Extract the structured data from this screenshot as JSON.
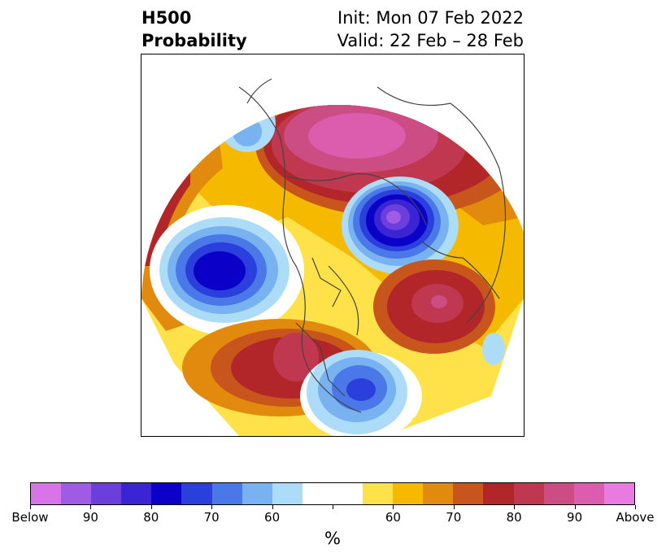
{
  "title": {
    "left_line1": "H500",
    "left_line2": "Probability",
    "right_line1": "Init: Mon 07 Feb 2022",
    "right_line2": "Valid: 22 Feb – 28 Feb"
  },
  "colorbar": {
    "unit": "%",
    "colors": [
      "#d774e8",
      "#a05be4",
      "#6a3fdc",
      "#3b24d4",
      "#0a00c8",
      "#2a3fdc",
      "#4a78e8",
      "#78b2f0",
      "#acdcf8",
      "#ffffff",
      "#ffffff",
      "#ffe14a",
      "#f5b900",
      "#e28a0e",
      "#c8561c",
      "#b2262a",
      "#c0384f",
      "#cc4c84",
      "#dc5cae",
      "#e87ae0"
    ],
    "tick_labels": [
      "Below",
      "90",
      "80",
      "70",
      "60",
      "",
      "60",
      "70",
      "80",
      "90",
      "Above"
    ]
  },
  "map": {
    "projection": "polar stereographic",
    "region": "Northern Hemisphere"
  }
}
